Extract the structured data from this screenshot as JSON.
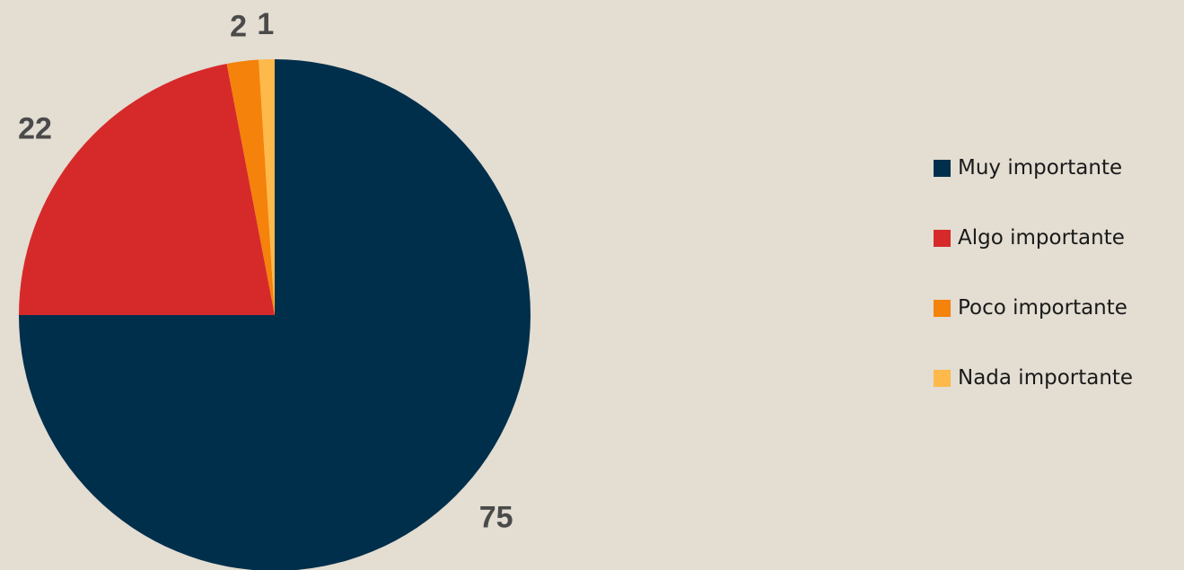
{
  "chart_data": {
    "type": "pie",
    "categories": [
      "Muy importante",
      "Algo importante",
      "Poco importante",
      "Nada importante"
    ],
    "values": [
      75,
      22,
      2,
      1
    ],
    "data_labels": [
      "75",
      "22",
      "2",
      "1"
    ],
    "colors": [
      "#002f4b",
      "#d62a2a",
      "#f5820a",
      "#fdb94a"
    ],
    "start_angle": "12 o'clock",
    "direction": "clockwise",
    "legend_position": "right",
    "title": ""
  },
  "legend": {
    "items": [
      {
        "label": "Muy importante",
        "color": "#002f4b"
      },
      {
        "label": "Algo importante",
        "color": "#d62a2a"
      },
      {
        "label": "Poco importante",
        "color": "#f5820a"
      },
      {
        "label": "Nada importante",
        "color": "#fdb94a"
      }
    ]
  }
}
